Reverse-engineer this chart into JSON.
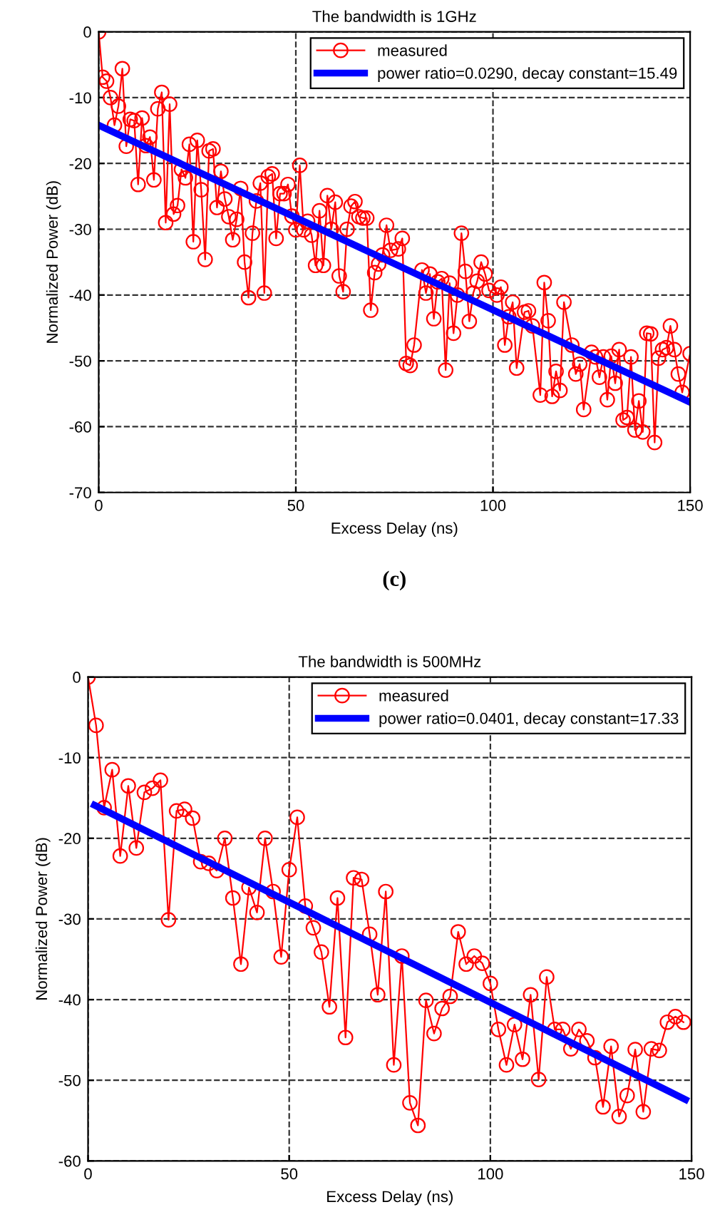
{
  "chart_data": [
    {
      "type": "line",
      "title": "The bandwidth is 1GHz",
      "xlabel": "Excess Delay (ns)",
      "ylabel": "Normalized Power (dB)",
      "xlim": [
        0,
        150
      ],
      "xticks": [
        0,
        50,
        100,
        150
      ],
      "ylim": [
        -70,
        0
      ],
      "yticks": [
        -70,
        -60,
        -50,
        -40,
        -30,
        -20,
        -10,
        0
      ],
      "grid": true,
      "legend": "top right",
      "annotations": [
        "(c)"
      ],
      "series": [
        {
          "name": "measured",
          "color": "#ff0000",
          "marker": "circle",
          "x": [
            0,
            1,
            2,
            3,
            4,
            5,
            6,
            7,
            8,
            9,
            10,
            11,
            12,
            13,
            14,
            15,
            16,
            17,
            18,
            19,
            20,
            21,
            22,
            23,
            24,
            25,
            26,
            27,
            28,
            29,
            30,
            31,
            32,
            33,
            34,
            35,
            36,
            37,
            38,
            39,
            40,
            41,
            42,
            43,
            44,
            45,
            46,
            47,
            48,
            49,
            50,
            51,
            52,
            53,
            54,
            55,
            56,
            57,
            58,
            59,
            60,
            61,
            62,
            63,
            64,
            65,
            66,
            67,
            68,
            69,
            70,
            71,
            72,
            73,
            74,
            76,
            77,
            78,
            79,
            80,
            82,
            83,
            84,
            85,
            86,
            87,
            88,
            89,
            90,
            91,
            92,
            93,
            94,
            95,
            96,
            97,
            98,
            99,
            101,
            102,
            103,
            104,
            105,
            106,
            108,
            109,
            110,
            112,
            113,
            114,
            115,
            116,
            117,
            118,
            120,
            121,
            122,
            123,
            125,
            126,
            127,
            128,
            129,
            130,
            131,
            132,
            133,
            134,
            135,
            136,
            137,
            138,
            139,
            140,
            141,
            142,
            143,
            144,
            145,
            146,
            147,
            148,
            150
          ],
          "values": [
            0,
            -6.9,
            -7.5,
            -10,
            -14.2,
            -11.3,
            -5.6,
            -17.4,
            -13.3,
            -13.5,
            -23.2,
            -13.1,
            -17.3,
            -16,
            -22.5,
            -11.7,
            -9.2,
            -29,
            -11,
            -27.7,
            -26.4,
            -20.9,
            -22.2,
            -17.1,
            -31.9,
            -16.5,
            -24,
            -34.6,
            -18.1,
            -17.8,
            -26.7,
            -21.2,
            -25.4,
            -28.1,
            -31.6,
            -28.5,
            -23.8,
            -35,
            -40.4,
            -30.6,
            -25.7,
            -23,
            -39.7,
            -22,
            -21.6,
            -31.4,
            -24.6,
            -24.6,
            -23.2,
            -28,
            -30.1,
            -20.3,
            -30.1,
            -28.8,
            -30.9,
            -35.5,
            -27.2,
            -35.5,
            -24.9,
            -30,
            -25.9,
            -37.1,
            -39.5,
            -30,
            -26.5,
            -25.8,
            -28.1,
            -28.3,
            -28.3,
            -42.3,
            -36.6,
            -35.3,
            -33.9,
            -29.4,
            -33.2,
            -33,
            -31.4,
            -50.4,
            -50.7,
            -47.6,
            -36.2,
            -39.7,
            -36.8,
            -43.6,
            -38,
            -37.5,
            -51.4,
            -38.2,
            -45.8,
            -40,
            -30.6,
            -36.4,
            -44,
            -39.7,
            -37.9,
            -35,
            -36.8,
            -39.3,
            -40,
            -38.8,
            -47.6,
            -43.3,
            -41.1,
            -51.1,
            -42.6,
            -42.4,
            -44.7,
            -55.2,
            -38.1,
            -43.9,
            -55.4,
            -51.6,
            -54.5,
            -41.1,
            -47.6,
            -52,
            -50.5,
            -57.4,
            -48.7,
            -49.4,
            -52.5,
            -49.4,
            -55.9,
            -49.3,
            -53.4,
            -48.3,
            -59,
            -58.6,
            -49.4,
            -60.5,
            -56.1,
            -60.8,
            -45.8,
            -45.9,
            -62.4,
            -49.6,
            -48.3,
            -48,
            -44.7,
            -48.3,
            -52,
            -54.8,
            -48.9
          ]
        },
        {
          "name": "power ratio=0.0290, decay constant=15.49",
          "color": "#0000ff",
          "marker": "none",
          "x": [
            0,
            150
          ],
          "values": [
            -14.2,
            -56.3
          ]
        }
      ]
    },
    {
      "type": "line",
      "title": "The bandwidth is 500MHz",
      "xlabel": "Excess Delay (ns)",
      "ylabel": "Normalized Power (dB)",
      "xlim": [
        0,
        150
      ],
      "xticks": [
        0,
        50,
        100,
        150
      ],
      "ylim": [
        -60,
        0
      ],
      "yticks": [
        -60,
        -50,
        -40,
        -30,
        -20,
        -10,
        0
      ],
      "grid": true,
      "legend": "top right",
      "series": [
        {
          "name": "measured",
          "color": "#ff0000",
          "marker": "circle",
          "x": [
            0,
            2,
            4,
            6,
            8,
            10,
            12,
            14,
            16,
            18,
            20,
            22,
            24,
            26,
            28,
            30,
            32,
            34,
            36,
            38,
            40,
            42,
            44,
            46,
            48,
            50,
            52,
            54,
            56,
            58,
            60,
            62,
            64,
            66,
            68,
            70,
            72,
            74,
            76,
            78,
            80,
            82,
            84,
            86,
            88,
            90,
            92,
            94,
            96,
            98,
            100,
            102,
            104,
            106,
            108,
            110,
            112,
            114,
            116,
            118,
            120,
            122,
            124,
            126,
            128,
            130,
            132,
            134,
            136,
            138,
            140,
            142,
            144,
            146,
            148
          ],
          "values": [
            0,
            -6,
            -16.2,
            -11.5,
            -22.2,
            -13.5,
            -21.2,
            -14.3,
            -13.8,
            -12.8,
            -30.1,
            -16.6,
            -16.4,
            -17.5,
            -22.9,
            -23.1,
            -24,
            -20,
            -27.4,
            -35.6,
            -26.1,
            -29.2,
            -20,
            -26.6,
            -34.7,
            -23.9,
            -17.4,
            -28.4,
            -31.1,
            -34.1,
            -40.9,
            -27.4,
            -44.7,
            -24.9,
            -25.1,
            -31.9,
            -39.4,
            -26.6,
            -48.1,
            -34.6,
            -52.8,
            -55.6,
            -40.1,
            -44.2,
            -41.1,
            -39.6,
            -31.6,
            -35.6,
            -34.6,
            -35.5,
            -38,
            -43.7,
            -48.1,
            -43.1,
            -47.4,
            -39.4,
            -49.9,
            -37.2,
            -43.7,
            -43.7,
            -46.1,
            -43.7,
            -45.1,
            -47.2,
            -53.3,
            -45.8,
            -54.5,
            -51.9,
            -46.2,
            -53.9,
            -46.1,
            -46.3,
            -42.8,
            -42.1,
            -42.8
          ]
        },
        {
          "name": "power ratio=0.0401, decay constant=17.33",
          "color": "#0000ff",
          "marker": "none",
          "x": [
            1.6,
            148.5
          ],
          "values": [
            -15.9,
            -52.4
          ]
        }
      ]
    }
  ]
}
